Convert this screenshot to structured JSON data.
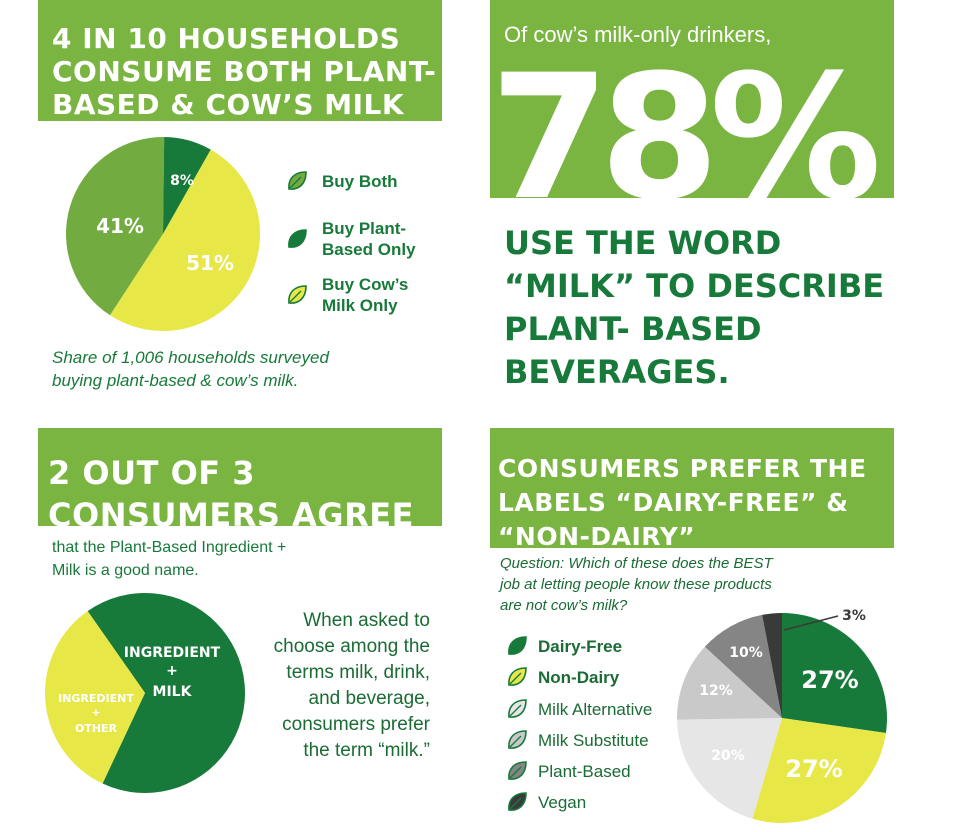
{
  "panel1": {
    "title_lines": [
      "4 IN 10 HOUSEHOLDS",
      "CONSUME BOTH PLANT-",
      "BASED & COW’S MILK"
    ],
    "caption_lines": [
      "Share of 1,006 households surveyed",
      "buying plant-based & cow’s milk."
    ]
  },
  "panel2": {
    "intro": "Of cow’s milk-only drinkers,",
    "big_number": "78%",
    "statement_lines": [
      "USE THE WORD",
      "“MILK” TO DESCRIBE",
      "PLANT- BASED",
      "BEVERAGES."
    ]
  },
  "panel3": {
    "title_lines": [
      "2 OUT OF 3",
      "CONSUMERS AGREE"
    ],
    "subtitle_lines": [
      "that the Plant-Based Ingredient +",
      "Milk is a good name."
    ],
    "body_lines": [
      "When asked to",
      "choose among the",
      "terms milk, drink,",
      "and beverage,",
      "consumers prefer",
      "the term “milk.”"
    ]
  },
  "panel4": {
    "title_lines": [
      "CONSUMERS PREFER THE",
      "LABELS “DAIRY-FREE” &",
      "“NON-DAIRY”"
    ],
    "question_lines": [
      "Question: Which of these does the BEST",
      "job at letting people know these products",
      "are not cow’s milk?"
    ]
  },
  "colors": {
    "header_green": "#7ab441",
    "dark_green": "#177a3a",
    "mid_green": "#72ab3f",
    "yellow": "#e8e748",
    "light_gray": "#e6e6e6",
    "mid_gray": "#c9c9c9",
    "dark_gray": "#858585",
    "charcoal": "#3a3a3a"
  },
  "icons": [
    "leaf-icon"
  ],
  "chart_data": [
    {
      "type": "pie",
      "labels": [
        "Buy Both",
        "Buy Plant-Based Only",
        "Buy Cow’s Milk Only"
      ],
      "legend_lines": [
        [
          "Buy Both"
        ],
        [
          "Buy Plant-",
          "Based Only"
        ],
        [
          "Buy Cow’s",
          "Milk Only"
        ]
      ],
      "values": [
        41,
        8,
        51
      ],
      "value_labels": [
        "41%",
        "8%",
        "51%"
      ],
      "colors": [
        "#72ab3f",
        "#177a3a",
        "#e8e748"
      ],
      "legend_placement": "right"
    },
    {
      "type": "pie",
      "labels": [
        "INGREDIENT + MILK",
        "INGREDIENT + OTHER"
      ],
      "label_lines": [
        [
          "INGREDIENT",
          "+",
          "MILK"
        ],
        [
          "INGREDIENT",
          "+",
          "OTHER"
        ]
      ],
      "values": [
        66.7,
        33.3
      ],
      "colors": [
        "#177a3a",
        "#e8e748"
      ]
    },
    {
      "type": "pie",
      "labels": [
        "Dairy-Free",
        "Non-Dairy",
        "Milk Alternative",
        "Milk Substitute",
        "Plant-Based",
        "Vegan"
      ],
      "values": [
        27,
        27,
        20,
        12,
        10,
        3
      ],
      "value_labels": [
        "27%",
        "27%",
        "20%",
        "12%",
        "10%",
        "3%"
      ],
      "colors": [
        "#177a3a",
        "#e8e748",
        "#e6e6e6",
        "#c9c9c9",
        "#858585",
        "#3a3a3a"
      ],
      "legend_placement": "left"
    }
  ]
}
